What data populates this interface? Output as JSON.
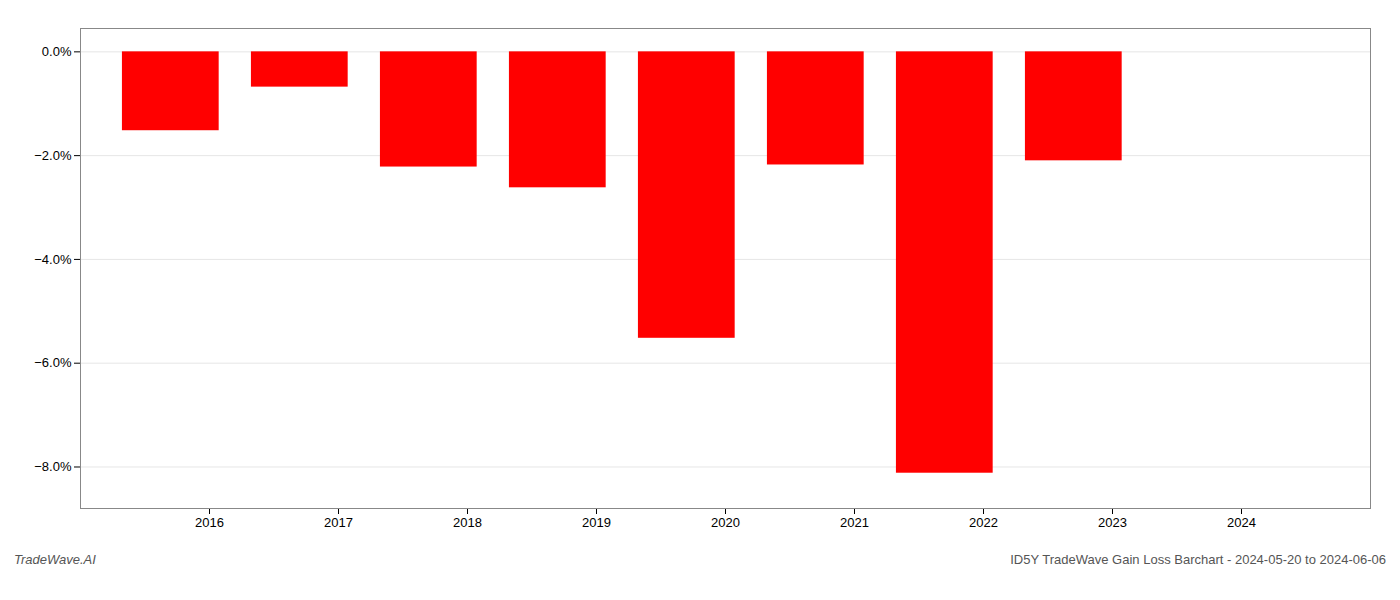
{
  "chart_data": {
    "type": "bar",
    "x": [
      2015.7,
      2016.7,
      2017.7,
      2018.7,
      2019.7,
      2020.7,
      2021.7,
      2022.7
    ],
    "values": [
      -1.52,
      -0.68,
      -2.22,
      -2.62,
      -5.52,
      -2.18,
      -8.12,
      -2.1
    ],
    "color": "#ff0000",
    "xlim": [
      2015.0,
      2025.0
    ],
    "xticks": [
      2016,
      2017,
      2018,
      2019,
      2020,
      2021,
      2022,
      2023,
      2024
    ],
    "ylim": [
      -8.8,
      0.45
    ],
    "yticks": [
      {
        "value": 0.0,
        "label": "0.0%"
      },
      {
        "value": -2.0,
        "label": "−2.0%"
      },
      {
        "value": -4.0,
        "label": "−4.0%"
      },
      {
        "value": -6.0,
        "label": "−6.0%"
      },
      {
        "value": -8.0,
        "label": "−8.0%"
      }
    ],
    "grid": true,
    "annotations": [
      "TradeWave.AI",
      "ID5Y TradeWave Gain Loss Barchart - 2024-05-20 to 2024-06-06"
    ]
  }
}
